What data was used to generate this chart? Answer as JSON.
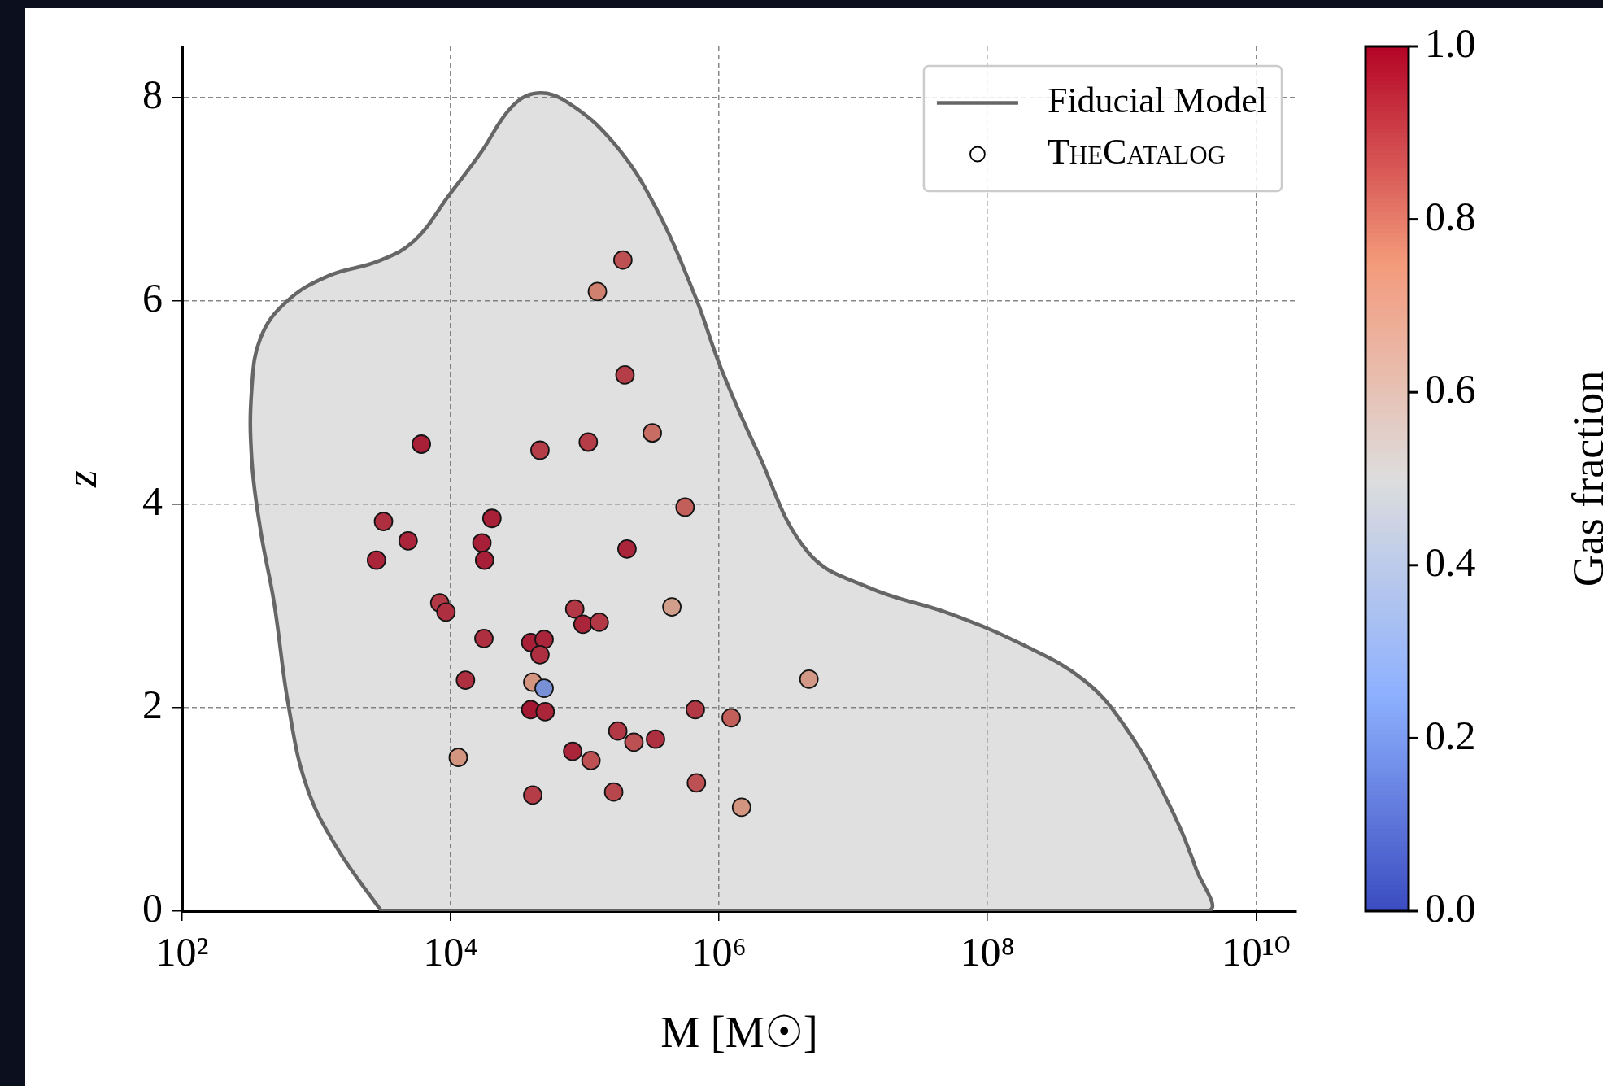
{
  "chart_data": {
    "type": "scatter",
    "xlabel": "M [M☉]",
    "ylabel": "z",
    "clabel": "Gas fraction",
    "log": "x",
    "grid": true,
    "legend": "top right",
    "xlim": [
      100,
      20000000000.0
    ],
    "ylim": [
      0,
      8.5
    ],
    "xticks": [
      {
        "value": 100,
        "label": "10²"
      },
      {
        "value": 10000,
        "label": "10⁴"
      },
      {
        "value": 1000000,
        "label": "10⁶"
      },
      {
        "value": 100000000,
        "label": "10⁸"
      },
      {
        "value": 10000000000,
        "label": "10¹⁰"
      }
    ],
    "yticks": [
      0,
      2,
      4,
      6,
      8
    ],
    "clim": [
      0,
      1
    ],
    "cticks": [
      {
        "value": 0,
        "label": "0.0"
      },
      {
        "value": 0.2,
        "label": "0.2"
      },
      {
        "value": 0.4,
        "label": "0.4"
      },
      {
        "value": 0.6,
        "label": "0.6"
      },
      {
        "value": 0.8,
        "label": "0.8"
      },
      {
        "value": 1,
        "label": "1.0"
      }
    ],
    "series": [
      {
        "name": "Fiducial Model",
        "type": "area",
        "color": "#666666",
        "x": [
          3050,
          1440,
          849,
          619,
          484,
          385,
          330,
          330,
          385,
          598,
          1210,
          2900,
          5360,
          9890,
          16700,
          28300,
          44000,
          74300,
          164000,
          330000,
          665000,
          1030000,
          1910000,
          4580000,
          13100000,
          53300000,
          182000000,
          522000000,
          1050000000,
          2120000000,
          3590000000,
          4280000000,
          3050
        ],
        "values": [
          0,
          0.61,
          1.22,
          2.02,
          3.03,
          3.73,
          4.43,
          5.14,
          5.64,
          5.99,
          6.24,
          6.39,
          6.59,
          7.05,
          7.45,
          7.9,
          8.04,
          7.95,
          7.55,
          6.94,
          6.04,
          5.34,
          4.53,
          3.53,
          3.18,
          2.92,
          2.62,
          2.27,
          1.82,
          1.12,
          0.41,
          0,
          0
        ]
      },
      {
        "name": "TheCatalog",
        "type": "scatter",
        "marker": "circle",
        "x": [
          192000,
          124000,
          199000,
          6050,
          46300,
          106000,
          318000,
          558000,
          3160,
          2800,
          4820,
          20300,
          17100,
          17900,
          206000,
          8300,
          9230,
          17700,
          84100,
          96800,
          128000,
          445000,
          39500,
          49700,
          46300,
          12900,
          40900,
          49700,
          4670000,
          39500,
          50600,
          665000,
          1230000,
          11400,
          176000,
          232000,
          336000,
          81100,
          111000,
          40900,
          164000,
          678000,
          1470000
        ],
        "values": [
          6.4,
          6.09,
          5.27,
          4.59,
          4.53,
          4.61,
          4.7,
          3.97,
          3.83,
          3.45,
          3.64,
          3.86,
          3.62,
          3.45,
          3.56,
          3.03,
          2.94,
          2.68,
          2.97,
          2.82,
          2.84,
          2.99,
          2.64,
          2.67,
          2.52,
          2.27,
          2.25,
          2.19,
          2.28,
          1.98,
          1.96,
          1.98,
          1.9,
          1.51,
          1.77,
          1.66,
          1.69,
          1.57,
          1.48,
          1.14,
          1.17,
          1.26,
          1.02
        ],
        "colors": [
          "#d34c4f",
          "#ec8871",
          "#c83441",
          "#b9102d",
          "#c83441",
          "#c83441",
          "#e27063",
          "#da5e59",
          "#c12237",
          "#bc1630",
          "#bc1630",
          "#b9102d",
          "#b9102d",
          "#b9102d",
          "#bc1630",
          "#c62e3e",
          "#c12237",
          "#c12237",
          "#c62e3e",
          "#bc1630",
          "#c62e3e",
          "#eead96",
          "#b9102d",
          "#bc1630",
          "#c12237",
          "#c12237",
          "#f1a287",
          "#7d9cf2",
          "#efa78f",
          "#b40426",
          "#bc1630",
          "#c62e3e",
          "#da5e59",
          "#f1a287",
          "#c62e3e",
          "#d34c4f",
          "#c12237",
          "#bc1630",
          "#d34c4f",
          "#c83441",
          "#ce4048",
          "#d34c4f",
          "#f1a287"
        ],
        "cvalues": [
          0.88,
          0.78,
          0.92,
          0.98,
          0.92,
          0.92,
          0.82,
          0.85,
          0.95,
          0.97,
          0.97,
          0.98,
          0.98,
          0.98,
          0.97,
          0.93,
          0.95,
          0.95,
          0.93,
          0.97,
          0.93,
          0.68,
          0.98,
          0.97,
          0.95,
          0.95,
          0.72,
          0.2,
          0.7,
          1.0,
          0.97,
          0.93,
          0.85,
          0.72,
          0.93,
          0.88,
          0.95,
          0.97,
          0.88,
          0.92,
          0.9,
          0.88,
          0.72
        ]
      }
    ]
  }
}
